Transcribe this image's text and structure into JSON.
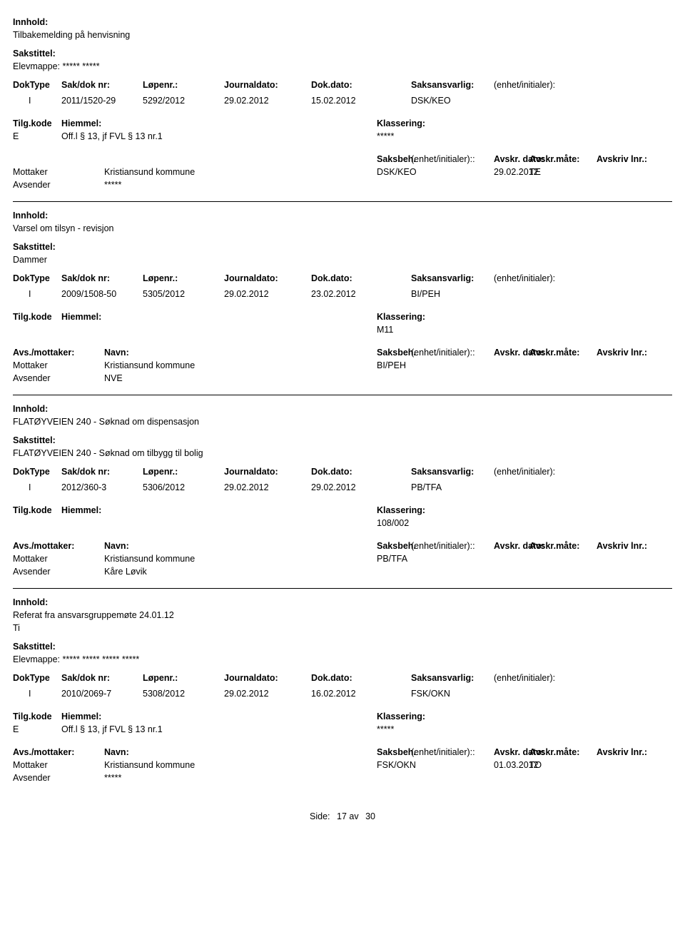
{
  "labels": {
    "innhold": "Innhold:",
    "sakstittel": "Sakstittel:",
    "doktype": "DokType",
    "sakdoknr": "Sak/dok nr:",
    "lopenr": "Løpenr.:",
    "journaldato": "Journaldato:",
    "dokdato": "Dok.dato:",
    "saksansvarlig": "Saksansvarlig:",
    "enhet": "(enhet/initialer):",
    "tilgkode": "Tilg.kode",
    "hjemmel": "Hiemmel:",
    "klassering": "Klassering:",
    "avsmottaker": "Avs./mottaker:",
    "navn": "Navn:",
    "saksbeh": "Saksbeh.",
    "avskrdato": "Avskr. dato:",
    "avskrmate": "Avskr.måte:",
    "avskrivlnr": "Avskriv lnr.:",
    "mottaker": "Mottaker",
    "avsender": "Avsender",
    "side": "Side:",
    "av": "av"
  },
  "footer": {
    "page": "17",
    "total": "30"
  },
  "records": [
    {
      "innhold": "Tilbakemelding på henvisning",
      "sakstittel": "Elevmappe: ***** *****",
      "doktype": "I",
      "sakdok": "2011/1520-29",
      "lopenr": "5292/2012",
      "journaldato": "29.02.2012",
      "dokdato": "15.02.2012",
      "saksansvarlig": "DSK/KEO",
      "tilgkode": "E",
      "hjemmel": "Off.l § 13, jf FVL § 13 nr.1",
      "klassering": "*****",
      "mottaker_navn": "Kristiansund kommune",
      "saksbeh": "DSK/KEO",
      "avskrdato": "29.02.2012",
      "avskrmate": "TE",
      "avsender_navn": "*****",
      "show_avsmottaker_header": false
    },
    {
      "innhold": "Varsel om tilsyn - revisjon",
      "sakstittel": "Dammer",
      "doktype": "I",
      "sakdok": "2009/1508-50",
      "lopenr": "5305/2012",
      "journaldato": "29.02.2012",
      "dokdato": "23.02.2012",
      "saksansvarlig": "BI/PEH",
      "tilgkode": "",
      "hjemmel": "",
      "klassering": "M11",
      "mottaker_navn": "Kristiansund kommune",
      "saksbeh": "BI/PEH",
      "avskrdato": "",
      "avskrmate": "",
      "avsender_navn": "NVE",
      "show_avsmottaker_header": true
    },
    {
      "innhold": "FLATØYVEIEN 240 - Søknad om dispensasjon",
      "sakstittel": "FLATØYVEIEN 240 - Søknad om tilbygg til bolig",
      "doktype": "I",
      "sakdok": "2012/360-3",
      "lopenr": "5306/2012",
      "journaldato": "29.02.2012",
      "dokdato": "29.02.2012",
      "saksansvarlig": "PB/TFA",
      "tilgkode": "",
      "hjemmel": "",
      "klassering": "108/002",
      "mottaker_navn": "Kristiansund kommune",
      "saksbeh": "PB/TFA",
      "avskrdato": "",
      "avskrmate": "",
      "avsender_navn": "Kåre Løvik",
      "show_avsmottaker_header": true
    },
    {
      "innhold": "Referat fra ansvarsgruppemøte 24.01.12",
      "innhold2": "Ti",
      "sakstittel": "Elevmappe: ***** ***** ***** *****",
      "doktype": "I",
      "sakdok": "2010/2069-7",
      "lopenr": "5308/2012",
      "journaldato": "29.02.2012",
      "dokdato": "16.02.2012",
      "saksansvarlig": "FSK/OKN",
      "tilgkode": "E",
      "hjemmel": "Off.l § 13, jf FVL § 13 nr.1",
      "klassering": "*****",
      "mottaker_navn": "Kristiansund kommune",
      "saksbeh": "FSK/OKN",
      "avskrdato": "01.03.2012",
      "avskrmate": "TO",
      "avsender_navn": "*****",
      "show_avsmottaker_header": true
    }
  ]
}
